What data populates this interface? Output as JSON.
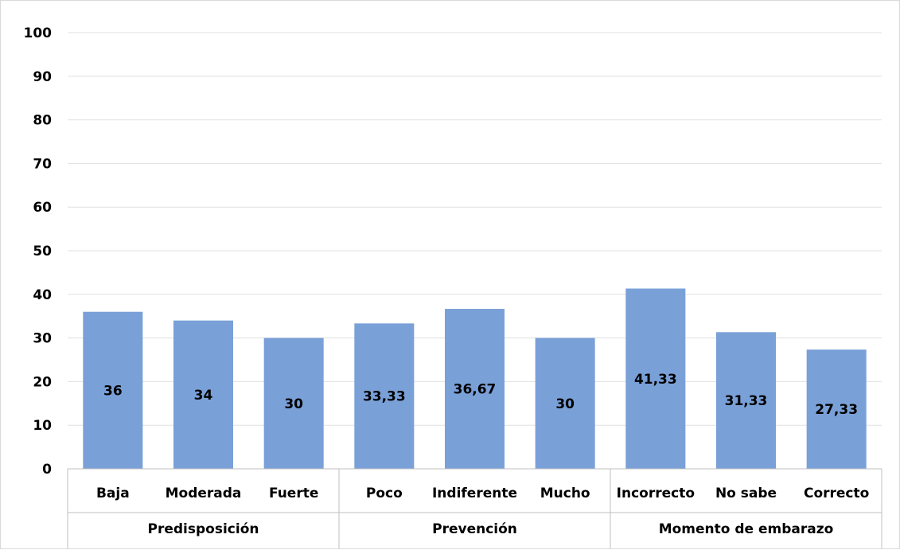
{
  "chart_data": {
    "type": "bar",
    "groups": [
      {
        "name": "Predisposición",
        "categories": [
          "Baja",
          "Moderada",
          "Fuerte"
        ]
      },
      {
        "name": "Prevención",
        "categories": [
          "Poco",
          "Indiferente",
          "Mucho"
        ]
      },
      {
        "name": "Momento de embarazo",
        "categories": [
          "Incorrecto",
          "No sabe",
          "Correcto"
        ]
      }
    ],
    "categories": [
      "Baja",
      "Moderada",
      "Fuerte",
      "Poco",
      "Indiferente",
      "Mucho",
      "Incorrecto",
      "No sabe",
      "Correcto"
    ],
    "values": [
      36,
      34,
      30,
      33.33,
      36.67,
      30,
      41.33,
      31.33,
      27.33
    ],
    "data_labels": [
      "36",
      "34",
      "30",
      "33,33",
      "36,67",
      "30",
      "41,33",
      "31,33",
      "27,33"
    ],
    "ylim": [
      0,
      100
    ],
    "yticks": [
      0,
      10,
      20,
      30,
      40,
      50,
      60,
      70,
      80,
      90,
      100
    ],
    "grid": true,
    "legend": "none",
    "bar_color": "#7aa0d8",
    "grid_color": "#e0e0e0",
    "axis_color": "#bfbfbf"
  }
}
